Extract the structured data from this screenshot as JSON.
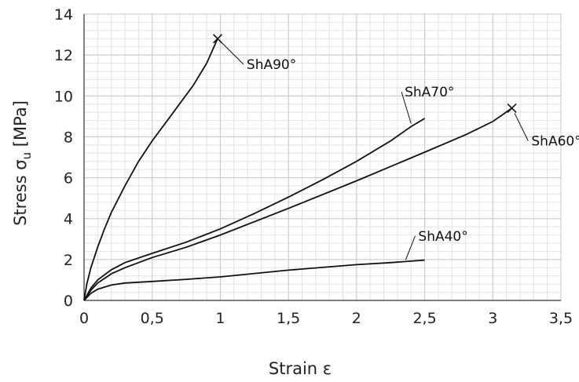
{
  "chart_data": {
    "type": "line",
    "xlabel": "Strain ε",
    "ylabel_main": "Stress σ",
    "ylabel_sub": "u",
    "ylabel_unit": " [MPa]",
    "xlim": [
      0,
      3.5
    ],
    "ylim": [
      0,
      14
    ],
    "x_ticks": [
      0,
      0.5,
      1,
      1.5,
      2,
      2.5,
      3,
      3.5
    ],
    "x_tick_labels": [
      "0",
      "0,5",
      "1",
      "1,5",
      "2",
      "2,5",
      "3",
      "3,5"
    ],
    "y_ticks": [
      0,
      2,
      4,
      6,
      8,
      10,
      12,
      14
    ],
    "y_tick_labels": [
      "0",
      "2",
      "4",
      "6",
      "8",
      "10",
      "12",
      "14"
    ],
    "grid": true,
    "series": [
      {
        "name": "ShA90°",
        "end_marker": "x",
        "points": [
          [
            0,
            0
          ],
          [
            0.02,
            0.8
          ],
          [
            0.05,
            1.6
          ],
          [
            0.1,
            2.6
          ],
          [
            0.15,
            3.5
          ],
          [
            0.2,
            4.3
          ],
          [
            0.3,
            5.6
          ],
          [
            0.4,
            6.8
          ],
          [
            0.5,
            7.8
          ],
          [
            0.6,
            8.7
          ],
          [
            0.7,
            9.6
          ],
          [
            0.8,
            10.5
          ],
          [
            0.9,
            11.6
          ],
          [
            0.98,
            12.8
          ]
        ]
      },
      {
        "name": "ShA70°",
        "end_marker": "",
        "points": [
          [
            0,
            0
          ],
          [
            0.05,
            0.6
          ],
          [
            0.1,
            1.0
          ],
          [
            0.2,
            1.5
          ],
          [
            0.3,
            1.85
          ],
          [
            0.5,
            2.3
          ],
          [
            0.75,
            2.85
          ],
          [
            1.0,
            3.5
          ],
          [
            1.25,
            4.25
          ],
          [
            1.5,
            5.05
          ],
          [
            1.75,
            5.9
          ],
          [
            2.0,
            6.8
          ],
          [
            2.25,
            7.8
          ],
          [
            2.4,
            8.5
          ],
          [
            2.5,
            8.9
          ]
        ]
      },
      {
        "name": "ShA60°",
        "end_marker": "x",
        "points": [
          [
            0,
            0
          ],
          [
            0.05,
            0.5
          ],
          [
            0.1,
            0.85
          ],
          [
            0.2,
            1.3
          ],
          [
            0.3,
            1.6
          ],
          [
            0.5,
            2.1
          ],
          [
            0.75,
            2.6
          ],
          [
            1.0,
            3.2
          ],
          [
            1.5,
            4.5
          ],
          [
            2.0,
            5.85
          ],
          [
            2.5,
            7.25
          ],
          [
            2.8,
            8.1
          ],
          [
            3.0,
            8.75
          ],
          [
            3.14,
            9.4
          ]
        ]
      },
      {
        "name": "ShA40°",
        "end_marker": "",
        "points": [
          [
            0,
            0
          ],
          [
            0.05,
            0.35
          ],
          [
            0.1,
            0.55
          ],
          [
            0.2,
            0.75
          ],
          [
            0.3,
            0.85
          ],
          [
            0.5,
            0.93
          ],
          [
            0.75,
            1.03
          ],
          [
            1.0,
            1.15
          ],
          [
            1.5,
            1.48
          ],
          [
            2.0,
            1.75
          ],
          [
            2.25,
            1.85
          ],
          [
            2.5,
            1.97
          ]
        ]
      }
    ],
    "labels": [
      {
        "text": "ShA90°",
        "anchor": [
          0.98,
          12.8
        ],
        "at": [
          1.17,
          11.55
        ]
      },
      {
        "text": "ShA70°",
        "anchor": [
          2.4,
          8.65
        ],
        "at": [
          2.33,
          10.2
        ]
      },
      {
        "text": "ShA60°",
        "anchor": [
          3.16,
          9.15
        ],
        "at": [
          3.26,
          7.8
        ]
      },
      {
        "text": "ShA40°",
        "anchor": [
          2.36,
          1.98
        ],
        "at": [
          2.43,
          3.15
        ]
      }
    ]
  }
}
